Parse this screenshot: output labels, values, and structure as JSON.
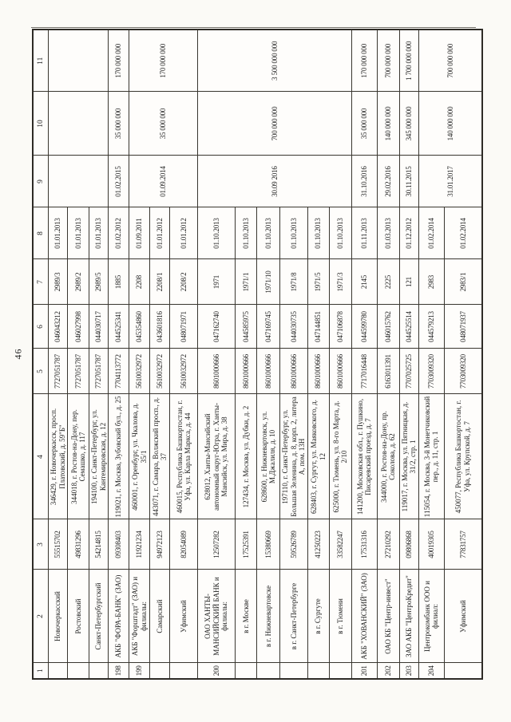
{
  "page": {
    "number": "46"
  },
  "table": {
    "columns": [
      "1",
      "2",
      "3",
      "4",
      "5",
      "6",
      "7",
      "8",
      "9",
      "10",
      "11"
    ],
    "rows": [
      {
        "c1": "",
        "c2": "Новочеркасский",
        "c3": "55515702",
        "c4": "346429, г. Новочеркасск, просп. Платовский, д. 59\"Б\"",
        "c5": "7727051787",
        "c6": "046043212",
        "c7": "2989/3",
        "c8": "01.01.2013",
        "c9": "",
        "c10": "",
        "c11": "",
        "group": "start",
        "span": 3
      },
      {
        "c1": "",
        "c2": "Ростовский",
        "c3": "49831296",
        "c4": "344018, г. Ростов-на-Дону, пер. Семашко, д. 117",
        "c5": "7727051787",
        "c6": "046027998",
        "c7": "2989/2",
        "c8": "01.01.2013",
        "group": "member"
      },
      {
        "c1": "",
        "c2": "Санкт-Петербургский",
        "c3": "54214815",
        "c4": "194100, г. Санкт-Петербург, ул. Кантемировская, д. 12",
        "c5": "7727051787",
        "c6": "044030717",
        "c7": "2989/5",
        "c8": "01.01.2013",
        "group": "member"
      },
      {
        "c1": "198",
        "c2": "АКБ \"ФОРА-БАНК\" (ЗАО)",
        "c3": "09308403",
        "c4": "119021, г. Москва, Зубовский бул., д. 25",
        "c5": "7704113772",
        "c6": "044525341",
        "c7": "1885",
        "c8": "01.02.2012",
        "c9": "01.02.2015",
        "c10": "35 000 000",
        "c11": "170 000 000",
        "group": "solo",
        "span": 1
      },
      {
        "c1": "199",
        "c2": "АКБ \"Форштадт\" (ЗАО) и филиалы:",
        "c3": "11921234",
        "c4": "460001, г. Оренбург, ул. Чкалова, д. 35/1",
        "c5": "5610032972",
        "c6": "045354860",
        "c7": "2208",
        "c8": "01.09.2011",
        "c9": "01.09.2014",
        "c10": "35 000 000",
        "c11": "170 000 000",
        "group": "start",
        "span": 3
      },
      {
        "c1": "",
        "c2": "Самарский",
        "c3": "94972123",
        "c4": "443071, г. Самара, Волжский просп., д. 37",
        "c5": "5610032972",
        "c6": "043601816",
        "c7": "2208/1",
        "c8": "01.01.2012",
        "group": "member"
      },
      {
        "c1": "",
        "c2": "Уфимский",
        "c3": "82054089",
        "c4": "460015, Республика Башкортостан, г. Уфа, ул. Карла Маркса, д. 44",
        "c5": "5610032972",
        "c6": "048071971",
        "c7": "2208/2",
        "c8": "01.01.2012",
        "group": "member"
      },
      {
        "c1": "200",
        "c2": "ОАО ХАНТЫ-МАНСИЙСКИЙ БАНК и филиалы:",
        "c3": "12507282",
        "c4": "628012, Ханты-Мансийский автономный округ-Югра, г. Ханты-Мансийск, ул. Мира, д. 38",
        "c5": "8601000666",
        "c6": "047162740",
        "c7": "1971",
        "c8": "01.10.2013",
        "c9": "30.09 2016",
        "c10": "700 000 000",
        "c11": "3 500 000 000",
        "group": "start",
        "span": 6
      },
      {
        "c1": "",
        "c2": "в г. Москве",
        "c3": "17525391",
        "c4": "127434, г. Москва, ул. Дубки, д. 2",
        "c5": "8601000666",
        "c6": "044585975",
        "c7": "1971/1",
        "c8": "01.10.2013",
        "group": "member"
      },
      {
        "c1": "",
        "c2": "в г. Нижневартовске",
        "c3": "15380669",
        "c4": "628600, г. Нижневартовск, ул. М.Джалиля, д. 10",
        "c5": "8601000666",
        "c6": "047169745",
        "c7": "1971/10",
        "c8": "01.10.2013",
        "group": "member"
      },
      {
        "c1": "",
        "c2": "в г. Санкт-Петербурге",
        "c3": "59526789",
        "c4": "197110, г. Санкт-Петербург, ул. Большая Зеленина, д. 8, корп. 2, литера А, пом. 13Н",
        "c5": "8601000666",
        "c6": "044030735",
        "c7": "1971/8",
        "c8": "01.10.2013",
        "group": "member"
      },
      {
        "c1": "",
        "c2": "в г. Сургуте",
        "c3": "41250223",
        "c4": "628403, г. Сургут, ул. Маяковского, д. 12",
        "c5": "8601000666",
        "c6": "047144851",
        "c7": "1971/5",
        "c8": "01.10.2013",
        "group": "member"
      },
      {
        "c1": "",
        "c2": "в г. Тюмени",
        "c3": "33582247",
        "c4": "625000, г. Тюмень, ул. 8-го Марта, д. 2/10",
        "c5": "8601000666",
        "c6": "047106878",
        "c7": "1971/3",
        "c8": "01.10.2013",
        "group": "member"
      },
      {
        "c1": "201",
        "c2": "АКБ \"ХОВАНСКИЙ\" (ЗАО)",
        "c3": "17531316",
        "c4": "141200, Московская обл., г. Пушкино, Писаревский проезд, д. 7",
        "c5": "7717016448",
        "c6": "044599780",
        "c7": "2145",
        "c8": "01.11.2013",
        "c9": "31.10.2016",
        "c10": "35 000 000",
        "c11": "170 000 000",
        "group": "solo",
        "span": 1
      },
      {
        "c1": "202",
        "c2": "ОАО КБ \"Центр-инвест\"",
        "c3": "27210292",
        "c4": "344000, г. Ростов-на-Дону, пр. Соколова, д. 62",
        "c5": "6163011391",
        "c6": "046015762",
        "c7": "2225",
        "c8": "01.03.2013",
        "c9": "29.02.2016",
        "c10": "140 000 000",
        "c11": "700 000 000",
        "group": "solo",
        "span": 1
      },
      {
        "c1": "203",
        "c2": "ЗАО АКБ \"ЦентроКредит\"",
        "c3": "09806868",
        "c4": "119017, г. Москва, ул. Пятницкая, д. 31/2, стр. 1",
        "c5": "7707025725",
        "c6": "044525514",
        "c7": "121",
        "c8": "01.12.2012",
        "c9": "30.11.2015",
        "c10": "345 000 000",
        "c11": "1 700 000 000",
        "group": "solo",
        "span": 1
      },
      {
        "c1": "204",
        "c2": "Центрокомбанк ООО и филиал:",
        "c3": "40019305",
        "c4": "115054, г. Москва, 3-й Монетчиковский пер., д. 11, стр. 1",
        "c5": "7703009320",
        "c6": "044579213",
        "c7": "2983",
        "c8": "01.02.2014",
        "c9": "31.01.2017",
        "c10": "140 000 000",
        "c11": "700 000 000",
        "group": "start",
        "span": 2
      },
      {
        "c1": "",
        "c2": "Уфимский",
        "c3": "77831757",
        "c4": "450077, Республика Башкортостан, г. Уфа, ул. Крупской, д. 7",
        "c5": "7703009320",
        "c6": "048071937",
        "c7": "2983/1",
        "c8": "01.02.2014",
        "group": "member"
      }
    ]
  }
}
